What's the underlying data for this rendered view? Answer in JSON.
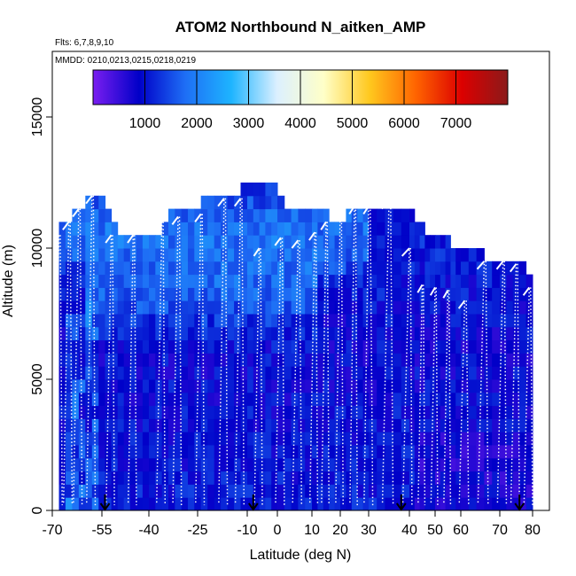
{
  "chart_data": {
    "type": "heatmap",
    "title": "ATOM2 Northbound N_aitken_AMP",
    "flights_label": "Flts: 6,7,8,9,10",
    "dates_label": "MMDD: 0210,0213,0215,0218,0219",
    "xlabel": "Latitude (deg N)",
    "ylabel": "Altitude (m)",
    "xlim": [
      -70,
      85
    ],
    "ylim": [
      0,
      17500
    ],
    "x_ticks": [
      -70,
      -55,
      -40,
      -25,
      -10,
      0,
      10,
      20,
      30,
      40,
      50,
      60,
      70,
      80
    ],
    "y_ticks": [
      0,
      5000,
      10000,
      15000
    ],
    "colorbar": {
      "range": [
        0,
        8000
      ],
      "ticks": [
        1000,
        2000,
        3000,
        4000,
        5000,
        6000,
        7000
      ],
      "colors": [
        "#7a1ef0",
        "#0000c8",
        "#1e6ef5",
        "#1eb4ff",
        "#dcf0ff",
        "#ffffc8",
        "#ffc81e",
        "#ff6400",
        "#dc0000",
        "#8b1a1a"
      ]
    },
    "grid_max_altitude_by_latitude": [
      [
        -68,
        10500
      ],
      [
        -64,
        11000
      ],
      [
        -60,
        11500
      ],
      [
        -56,
        12000
      ],
      [
        -50,
        10500
      ],
      [
        -44,
        10500
      ],
      [
        -36,
        10500
      ],
      [
        -32,
        11500
      ],
      [
        -24,
        11500
      ],
      [
        -18,
        12000
      ],
      [
        -12,
        12000
      ],
      [
        -8,
        12500
      ],
      [
        0,
        12000
      ],
      [
        6,
        11000
      ],
      [
        10,
        11500
      ],
      [
        16,
        11000
      ],
      [
        22,
        11000
      ],
      [
        28,
        11500
      ],
      [
        34,
        11500
      ],
      [
        38,
        11500
      ],
      [
        42,
        11000
      ],
      [
        46,
        10500
      ],
      [
        50,
        10500
      ],
      [
        56,
        10000
      ],
      [
        62,
        10000
      ],
      [
        66,
        9500
      ],
      [
        70,
        9500
      ],
      [
        74,
        9500
      ],
      [
        78,
        9000
      ],
      [
        80,
        9000
      ]
    ],
    "flight_markers_latitude": [
      -54,
      -8,
      38,
      76
    ],
    "profile_turnarounds": [
      [
        -68,
        10500
      ],
      [
        -65,
        11000
      ],
      [
        -62,
        11500
      ],
      [
        -58,
        12000
      ],
      [
        -52,
        10500
      ],
      [
        -45,
        10500
      ],
      [
        -36,
        11000
      ],
      [
        -31,
        11200
      ],
      [
        -24,
        11300
      ],
      [
        -17,
        11900
      ],
      [
        -12,
        11900
      ],
      [
        -6,
        10000
      ],
      [
        1,
        10400
      ],
      [
        6,
        10300
      ],
      [
        11,
        10600
      ],
      [
        15,
        11000
      ],
      [
        20,
        11500
      ],
      [
        25,
        11600
      ],
      [
        30,
        11600
      ],
      [
        35,
        11800
      ],
      [
        40,
        10000
      ],
      [
        45,
        8600
      ],
      [
        50,
        8500
      ],
      [
        55,
        8400
      ],
      [
        61,
        8000
      ],
      [
        66,
        9500
      ],
      [
        71,
        9500
      ],
      [
        75,
        9400
      ],
      [
        79,
        8500
      ]
    ],
    "legend": "top-center colorbar"
  }
}
